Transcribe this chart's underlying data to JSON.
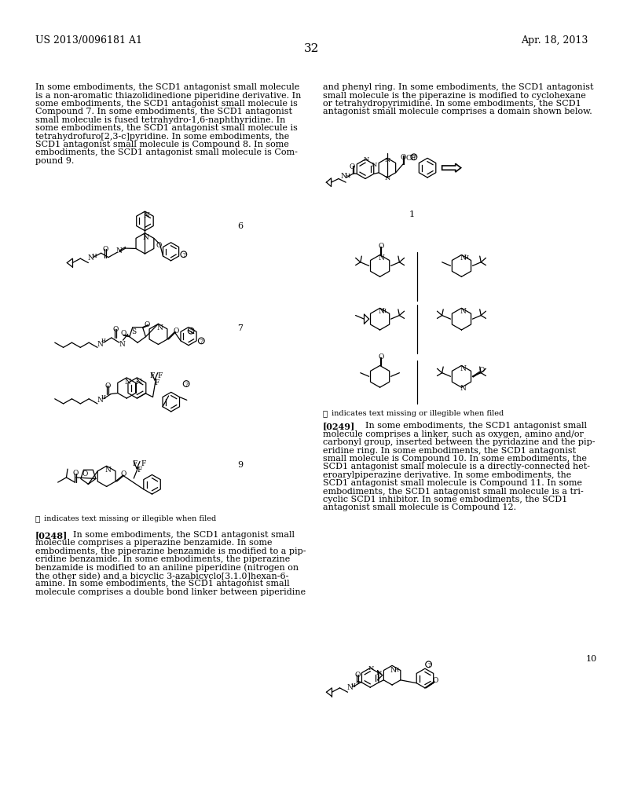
{
  "background_color": "#ffffff",
  "header_left": "US 2013/0096181 A1",
  "header_right": "Apr. 18, 2013",
  "page_number": "32",
  "left_col_para1": [
    "In some embodiments, the SCD1 antagonist small molecule",
    "is a non-aromatic thiazolidinedione piperidine derivative. In",
    "some embodiments, the SCD1 antagonist small molecule is",
    "Compound 7. In some embodiments, the SCD1 antagonist",
    "small molecule is fused tetrahydro-1,6-naphthyridine. In",
    "some embodiments, the SCD1 antagonist small molecule is",
    "tetrahydrofuro[2,3-c]pyridine. In some embodiments, the",
    "SCD1 antagonist small molecule is Compound 8. In some",
    "embodiments, the SCD1 antagonist small molecule is Com-",
    "pound 9."
  ],
  "right_col_para1": [
    "and phenyl ring. In some embodiments, the SCD1 antagonist",
    "small molecule is the piperazine is modified to cyclohexane",
    "or tetrahydropyrimidine. In some embodiments, the SCD1",
    "antagonist small molecule comprises a domain shown below."
  ],
  "para_0249": [
    "[0249]   In some embodiments, the SCD1 antagonist small",
    "molecule comprises a linker, such as oxygen, amino and/or",
    "carbonyl group, inserted between the pyridazine and the pip-",
    "eridine ring. In some embodiments, the SCD1 antagonist",
    "small molecule is Compound 10. In some embodiments, the",
    "SCD1 antagonist small molecule is a directly-connected het-",
    "eroarylpiperazine derivative. In some embodiments, the",
    "SCD1 antagonist small molecule is Compound 11. In some",
    "embodiments, the SCD1 antagonist small molecule is a tri-",
    "cyclic SCD1 inhibitor. In some embodiments, the SCD1",
    "antagonist small molecule is Compound 12."
  ],
  "para_0248": [
    "[0248]   In some embodiments, the SCD1 antagonist small",
    "molecule comprises a piperazine benzamide. In some",
    "embodiments, the piperazine benzamide is modified to a pip-",
    "eridine benzamide. In some embodiments, the piperazine",
    "benzamide is modified to an aniline piperidine (nitrogen on",
    "the other side) and a bicyclic 3-azabicyclo[3.1.0]hexan-6-",
    "amine. In some embodiments, the SCD1 antagonist small",
    "molecule comprises a double bond linker between piperidine"
  ],
  "font_body": 8.0,
  "font_header": 9.0,
  "font_pagenum": 11.0,
  "lc": "#000000"
}
